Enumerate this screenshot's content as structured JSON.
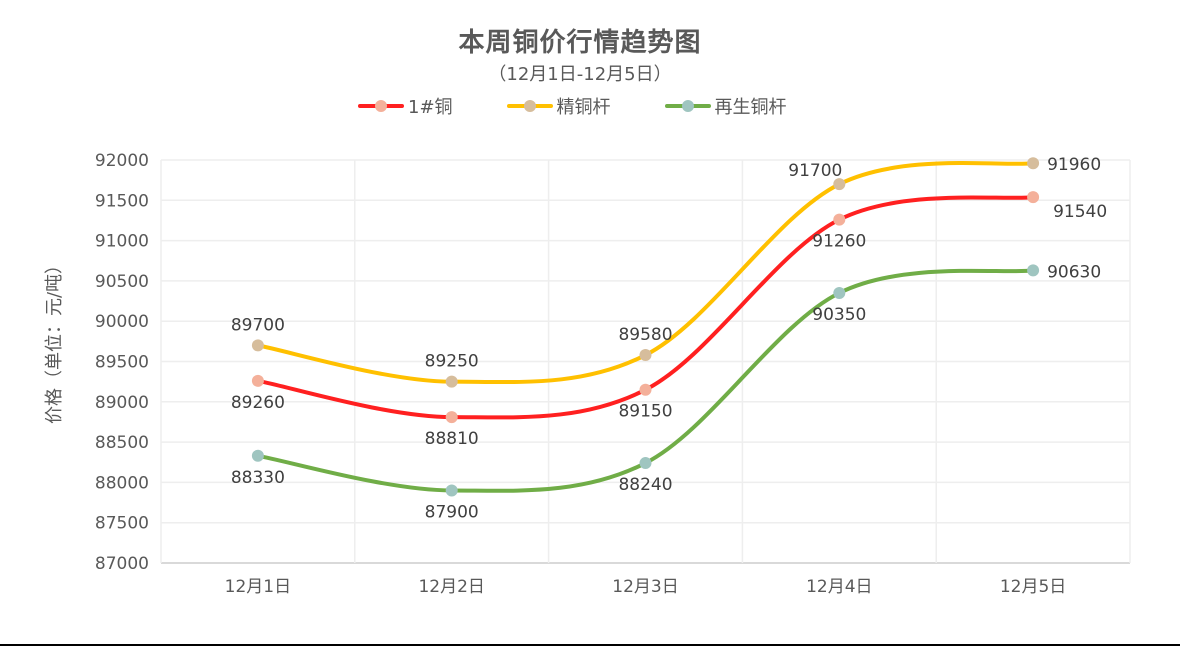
{
  "chart_data": {
    "type": "line",
    "title": "本周铜价行情趋势图",
    "subtitle": "（12月1日-12月5日）",
    "xlabel": "",
    "ylabel": "价格（单位：元/吨）",
    "categories": [
      "12月1日",
      "12月2日",
      "12月3日",
      "12月4日",
      "12月5日"
    ],
    "ylim": [
      87000,
      92000
    ],
    "yticks": [
      87000,
      87500,
      88000,
      88500,
      89000,
      89500,
      90000,
      90500,
      91000,
      91500,
      92000
    ],
    "grid": true,
    "legend_position": "top",
    "smooth": true,
    "series": [
      {
        "name": "1#铜",
        "values": [
          89260,
          88810,
          89150,
          91260,
          91540
        ],
        "line_color": "#ff2020",
        "marker_color": "#f4b09a",
        "label_position": [
          "below",
          "below",
          "below",
          "below",
          "below-right"
        ]
      },
      {
        "name": "精铜杆",
        "values": [
          89700,
          89250,
          89580,
          91700,
          91960
        ],
        "line_color": "#ffc000",
        "marker_color": "#d6bd9c",
        "label_position": [
          "above",
          "above",
          "above",
          "above-left",
          "right"
        ]
      },
      {
        "name": "再生铜杆",
        "values": [
          88330,
          87900,
          88240,
          90350,
          90630
        ],
        "line_color": "#70ad47",
        "marker_color": "#9fc5c0",
        "label_position": [
          "below",
          "below",
          "below",
          "below",
          "right"
        ]
      }
    ]
  },
  "header": {
    "title": "本周铜价行情趋势图",
    "subtitle": "（12月1日-12月5日）"
  },
  "legend": {
    "items": [
      {
        "label": "1#铜"
      },
      {
        "label": "精铜杆"
      },
      {
        "label": "再生铜杆"
      }
    ]
  },
  "axes": {
    "y_title": "价格（单位：元/吨）"
  },
  "colors": {
    "text": "#595959",
    "grid": "#eeeeee",
    "axis": "#d9d9d9",
    "label": "#404040"
  }
}
